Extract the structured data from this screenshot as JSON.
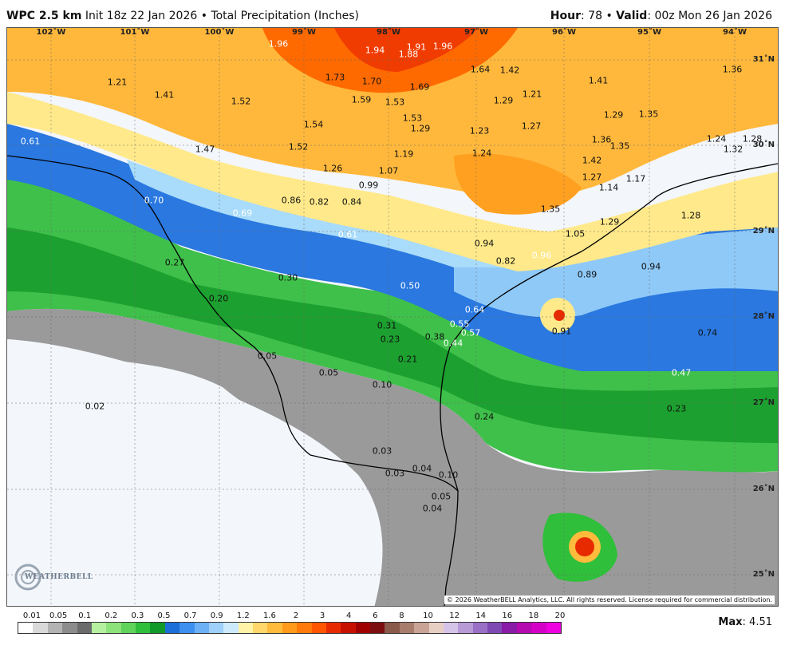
{
  "header": {
    "model": "WPC 2.5 km",
    "init": "Init 18z 22 Jan 2026",
    "sep": "•",
    "product": "Total Precipitation (Inches)",
    "hour_label": "Hour",
    "hour_value": ": 78",
    "valid_label": "Valid",
    "valid_value": ": 00z Mon 26 Jan 2026"
  },
  "longitudes": [
    "102˚W",
    "101˚W",
    "100˚W",
    "99˚W",
    "98˚W",
    "97˚W",
    "96˚W",
    "95˚W",
    "94˚W"
  ],
  "latitudes": [
    "31˚N",
    "30˚N",
    "29˚N",
    "28˚N",
    "27˚N",
    "26˚N",
    "25˚N"
  ],
  "precip_labels": [
    "1.96",
    "1.94",
    "1.91",
    "1.88",
    "1.96",
    "1.64",
    "1.42",
    "1.36",
    "1.21",
    "1.41",
    "1.73",
    "1.70",
    "1.69",
    "1.41",
    "1.52",
    "1.59",
    "1.53",
    "1.21",
    "1.29",
    "1.54",
    "1.53",
    "1.29",
    "1.35",
    "1.29",
    "1.23",
    "1.27",
    "1.47",
    "1.52",
    "1.19",
    "1.24",
    "1.36",
    "1.35",
    "1.24",
    "1.32",
    "1.28",
    "0.61",
    "1.26",
    "1.07",
    "1.42",
    "1.27",
    "1.17",
    "1.14",
    "0.99",
    "0.70",
    "0.86",
    "0.82",
    "0.84",
    "1.35",
    "1.29",
    "1.28",
    "0.69",
    "0.61",
    "1.05",
    "0.94",
    "0.96",
    "0.82",
    "0.94",
    "0.27",
    "0.30",
    "0.89",
    "0.50",
    "0.20",
    "0.64",
    "0.55",
    "0.57",
    "0.91",
    "0.74",
    "0.31",
    "0.38",
    "0.44",
    "0.23",
    "0.05",
    "0.21",
    "0.47",
    "0.05",
    "0.10",
    "0.02",
    "0.24",
    "0.23",
    "0.03",
    "0.04",
    "0.03",
    "0.10",
    "0.05",
    "0.04"
  ],
  "copyright": "© 2026 WeatherBELL Analytics, LLC. All rights reserved. License required for commercial distribution.",
  "logo_text": "WEATHERBELL",
  "legend": {
    "ticks": [
      "0.01",
      "0.05",
      "0.1",
      "0.2",
      "0.3",
      "0.5",
      "0.7",
      "0.9",
      "1.2",
      "1.6",
      "2",
      "3",
      "4",
      "6",
      "8",
      "10",
      "12",
      "14",
      "16",
      "18",
      "20"
    ],
    "colors": [
      "#ffffff",
      "#d9d9d9",
      "#b3b3b3",
      "#8c8c8c",
      "#6b6b6b",
      "#b4f0a0",
      "#8ee27a",
      "#5fd35a",
      "#2fbf3a",
      "#109a2a",
      "#1c6fd8",
      "#3d8ff0",
      "#6cb0f5",
      "#9fd0fa",
      "#cdeafc",
      "#fff3a8",
      "#ffd76a",
      "#ffbb3c",
      "#ff9a1a",
      "#ff7a0a",
      "#ff5500",
      "#e82a00",
      "#c81000",
      "#a00000",
      "#7d0e10",
      "#8a5a4a",
      "#a87d6e",
      "#c9a395",
      "#e8cfc4",
      "#d6c3e8",
      "#b79ad6",
      "#9a6fc6",
      "#7f49b4",
      "#8a1aa8",
      "#b40ab0",
      "#d400c8",
      "#ee00e0"
    ]
  },
  "max_label": "Max",
  "max_value": ": 4.51",
  "colors": {
    "ocean": "#f3f6fb",
    "border": "#000000"
  }
}
